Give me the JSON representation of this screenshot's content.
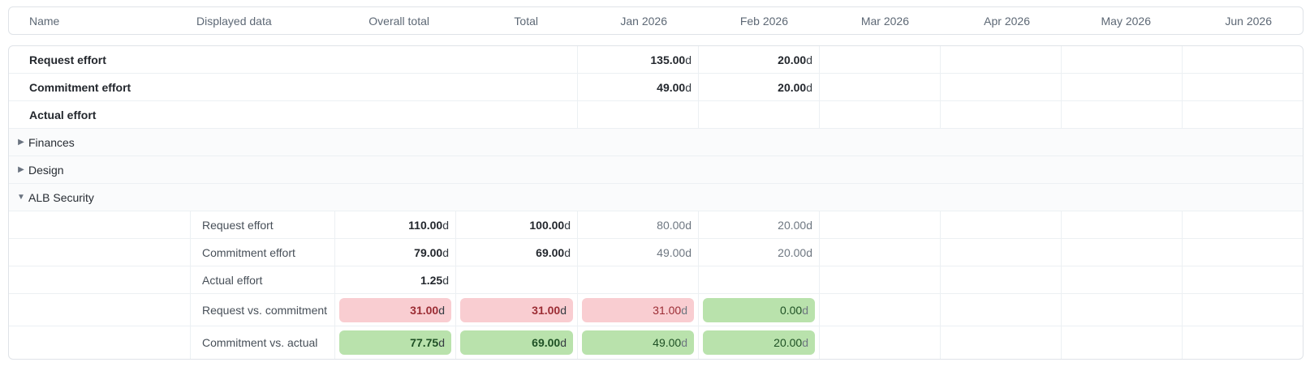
{
  "table": {
    "columns": [
      {
        "key": "name",
        "label": "Name"
      },
      {
        "key": "displayed_data",
        "label": "Displayed data"
      },
      {
        "key": "overall_total",
        "label": "Overall total"
      },
      {
        "key": "total",
        "label": "Total"
      },
      {
        "key": "m1",
        "label": "Jan 2026"
      },
      {
        "key": "m2",
        "label": "Feb 2026"
      },
      {
        "key": "m3",
        "label": "Mar 2026"
      },
      {
        "key": "m4",
        "label": "Apr 2026"
      },
      {
        "key": "m5",
        "label": "May 2026"
      },
      {
        "key": "m6",
        "label": "Jun 2026"
      }
    ],
    "rows": [
      {
        "type": "summary",
        "name": "Request effort",
        "cells": [
          null,
          null,
          {
            "text": "135.00d",
            "strong": true
          },
          {
            "text": "20.00d",
            "strong": true
          },
          null,
          null,
          null,
          null
        ]
      },
      {
        "type": "summary",
        "name": "Commitment effort",
        "cells": [
          null,
          null,
          {
            "text": "49.00d",
            "strong": true
          },
          {
            "text": "20.00d",
            "strong": true
          },
          null,
          null,
          null,
          null
        ]
      },
      {
        "type": "summary",
        "name": "Actual effort",
        "cells": [
          null,
          null,
          null,
          null,
          null,
          null,
          null,
          null
        ]
      },
      {
        "type": "group",
        "name": "Finances",
        "expanded": false
      },
      {
        "type": "group",
        "name": "Design",
        "expanded": false
      },
      {
        "type": "group",
        "name": "ALB Security",
        "expanded": true
      },
      {
        "type": "detail",
        "name": "",
        "displayed_data": "Request effort",
        "cells": [
          {
            "text": "110.00d",
            "strong": true
          },
          {
            "text": "100.00d",
            "strong": true
          },
          {
            "text": "80.00d"
          },
          {
            "text": "20.00d"
          },
          null,
          null,
          null,
          null
        ]
      },
      {
        "type": "detail",
        "name": "",
        "displayed_data": "Commitment effort",
        "cells": [
          {
            "text": "79.00d",
            "strong": true
          },
          {
            "text": "69.00d",
            "strong": true
          },
          {
            "text": "49.00d"
          },
          {
            "text": "20.00d"
          },
          null,
          null,
          null,
          null
        ]
      },
      {
        "type": "detail",
        "name": "",
        "displayed_data": "Actual effort",
        "cells": [
          {
            "text": "1.25d",
            "strong": true
          },
          null,
          null,
          null,
          null,
          null,
          null,
          null
        ]
      },
      {
        "type": "detail_badge",
        "name": "",
        "displayed_data": "Request vs. commitment",
        "cells": [
          {
            "text": "31.00d",
            "badge": "red",
            "strong": true
          },
          {
            "text": "31.00d",
            "badge": "red",
            "strong": true
          },
          {
            "text": "31.00d",
            "badge": "red"
          },
          {
            "text": "0.00d",
            "badge": "green"
          },
          null,
          null,
          null,
          null
        ]
      },
      {
        "type": "detail_badge",
        "name": "",
        "displayed_data": "Commitment vs. actual",
        "cells": [
          {
            "text": "77.75d",
            "badge": "green",
            "strong": true
          },
          {
            "text": "69.00d",
            "badge": "green",
            "strong": true
          },
          {
            "text": "49.00d",
            "badge": "green"
          },
          {
            "text": "20.00d",
            "badge": "green"
          },
          null,
          null,
          null,
          null
        ]
      }
    ]
  },
  "icons": {
    "caret_collapsed": "▶",
    "caret_expanded": "▼"
  },
  "colors": {
    "badge_red_bg": "#f9cdd1",
    "badge_red_text": "#9b2c34",
    "badge_green_bg": "#b9e2ac",
    "badge_green_text": "#1e5024",
    "group_row_bg": "#fafbfc",
    "header_text": "#5d6875",
    "muted_text": "#6e7781"
  }
}
